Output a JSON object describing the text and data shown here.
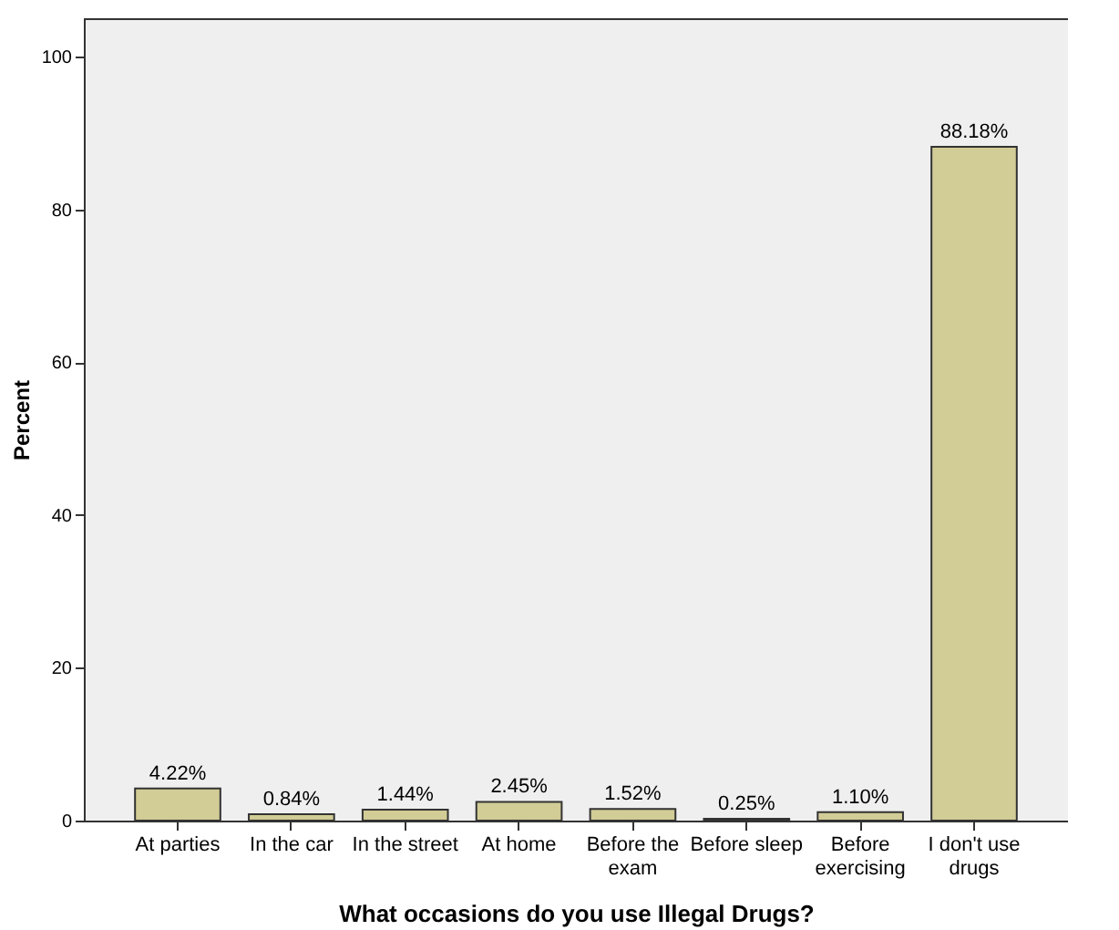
{
  "chart_data": {
    "type": "bar",
    "xlabel": "What occasions do you use Illegal Drugs?",
    "ylabel": "Percent",
    "categories": [
      "At parties",
      "In the car",
      "In the street",
      "At home",
      "Before the exam",
      "Before sleep",
      "Before exercising",
      "I don't use drugs"
    ],
    "values": [
      4.22,
      0.84,
      1.44,
      2.45,
      1.52,
      0.25,
      1.1,
      88.18
    ],
    "value_labels": [
      "4.22%",
      "0.84%",
      "1.44%",
      "2.45%",
      "1.52%",
      "0.25%",
      "1.10%",
      "88.18%"
    ],
    "color": "#d2cc96",
    "ylim": [
      0,
      105
    ],
    "yticks": [
      0,
      20,
      40,
      60,
      80,
      100
    ],
    "grid": false
  }
}
